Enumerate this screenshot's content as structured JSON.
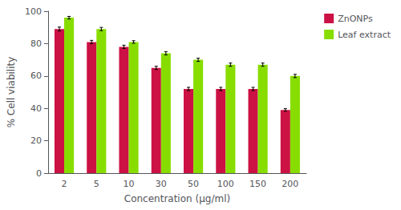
{
  "chart_data": {
    "type": "bar",
    "xlabel": "Concentration (μg/ml)",
    "ylabel": "% Cell viability",
    "categories": [
      "2",
      "5",
      "10",
      "30",
      "50",
      "100",
      "150",
      "200"
    ],
    "series": [
      {
        "name": "ZnONPs",
        "color": "#CC1144",
        "values": [
          89,
          81,
          78,
          65,
          52,
          52,
          52,
          39
        ],
        "errors": [
          1.2,
          1.0,
          1.0,
          1.0,
          1.0,
          1.0,
          1.0,
          0.8
        ]
      },
      {
        "name": "Leaf extract",
        "color": "#88DD00",
        "values": [
          96,
          89,
          81,
          74,
          70,
          67,
          67,
          60
        ],
        "errors": [
          0.8,
          1.0,
          0.8,
          1.0,
          1.0,
          1.0,
          1.0,
          1.0
        ]
      }
    ],
    "ylim": [
      0,
      100
    ],
    "yticks": [
      0,
      20,
      40,
      60,
      80,
      100
    ],
    "grid": false,
    "legend": "right"
  }
}
